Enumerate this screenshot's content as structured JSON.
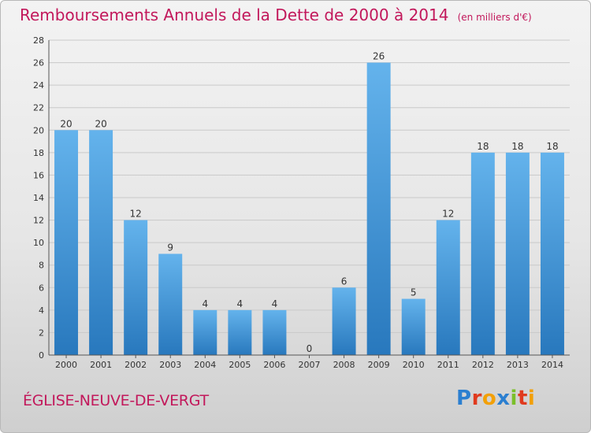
{
  "title": "Remboursements Annuels de la Dette de 2000 à 2014",
  "unit": "(en milliers d'€)",
  "commune": "ÉGLISE-NEUVE-DE-VERGT",
  "logo": {
    "letters": [
      {
        "ch": "P",
        "color": "#2b7fd0"
      },
      {
        "ch": "r",
        "color": "#e03a1e"
      },
      {
        "ch": "o",
        "color": "#f2a007"
      },
      {
        "ch": "x",
        "color": "#2b7fd0"
      },
      {
        "ch": "i",
        "color": "#7bbf2a"
      },
      {
        "ch": "t",
        "color": "#e03a1e"
      },
      {
        "ch": "i",
        "color": "#f2a007"
      }
    ]
  },
  "colors": {
    "accent": "#c2185b",
    "bar_top": "#64b3ec",
    "bar_bottom": "#2878bd",
    "grid": "#c9c9c9",
    "axis_text": "#333333"
  },
  "chart_data": {
    "type": "bar",
    "categories": [
      "2000",
      "2001",
      "2002",
      "2003",
      "2004",
      "2005",
      "2006",
      "2007",
      "2008",
      "2009",
      "2010",
      "2011",
      "2012",
      "2013",
      "2014"
    ],
    "values": [
      20,
      20,
      12,
      9,
      4,
      4,
      4,
      0,
      6,
      26,
      5,
      12,
      18,
      18,
      18
    ],
    "data_labels": [
      "20",
      "20",
      "12",
      "9",
      "4",
      "4",
      "4",
      "0",
      "6",
      "26",
      "5",
      "12",
      "18",
      "18",
      "18"
    ],
    "ylim": [
      0,
      28
    ],
    "yticks": [
      0,
      2,
      4,
      6,
      8,
      10,
      12,
      14,
      16,
      18,
      20,
      22,
      24,
      26,
      28
    ],
    "grid": true,
    "xlabel": "",
    "ylabel": ""
  }
}
